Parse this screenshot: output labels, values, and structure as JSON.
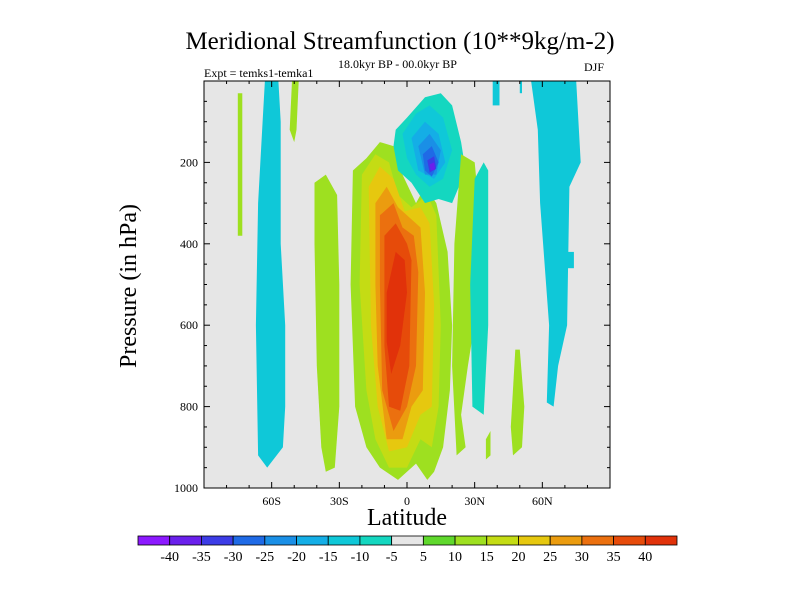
{
  "chart_data": {
    "type": "filled-contour",
    "title": "Meridional Streamfunction (10**9kg/m-2)",
    "experiment": "Expt = temks1-temka1",
    "period": "18.0kyr BP - 00.0kyr BP",
    "season": "DJF",
    "xlabel": "Latitude",
    "ylabel": "Pressure (in hPa)",
    "xlim": [
      -90,
      90
    ],
    "ylim": [
      1000,
      0
    ],
    "x_ticks": [
      {
        "value": -60,
        "label": "60S"
      },
      {
        "value": -30,
        "label": "30S"
      },
      {
        "value": 0,
        "label": "0"
      },
      {
        "value": 30,
        "label": "30N"
      },
      {
        "value": 60,
        "label": "60N"
      }
    ],
    "y_ticks": [
      {
        "value": 200,
        "label": "200"
      },
      {
        "value": 400,
        "label": "400"
      },
      {
        "value": 600,
        "label": "600"
      },
      {
        "value": 800,
        "label": "800"
      },
      {
        "value": 1000,
        "label": "1000"
      }
    ],
    "contour_levels": [
      -40,
      -35,
      -30,
      -25,
      -20,
      -15,
      -10,
      -5,
      5,
      10,
      15,
      20,
      25,
      30,
      35,
      40
    ],
    "colorbar_colors": [
      "#8c19ff",
      "#6a20ec",
      "#3c3ce6",
      "#1f6ae6",
      "#1a8fe6",
      "#14aee6",
      "#0fc8d8",
      "#14d7c0",
      "#e6e6e6",
      "#5fd82c",
      "#9ee020",
      "#c4dc14",
      "#e6c80f",
      "#eb9c0f",
      "#eb700f",
      "#e64b0a",
      "#e1320a"
    ],
    "regions": [
      {
        "level": 10,
        "polygon": [
          [
            -75,
            30
          ],
          [
            -73,
            30
          ],
          [
            -73,
            380
          ],
          [
            -75,
            380
          ]
        ]
      },
      {
        "level": -10,
        "polygon": [
          [
            -63,
            0
          ],
          [
            -57,
            0
          ],
          [
            -56,
            100
          ],
          [
            -56,
            400
          ],
          [
            -54,
            600
          ],
          [
            -54,
            800
          ],
          [
            -55,
            900
          ],
          [
            -62,
            950
          ],
          [
            -66,
            920
          ],
          [
            -67,
            600
          ],
          [
            -66,
            300
          ],
          [
            -64,
            100
          ]
        ]
      },
      {
        "level": 10,
        "polygon": [
          [
            -51,
            0
          ],
          [
            -48,
            0
          ],
          [
            -49,
            120
          ],
          [
            -50,
            150
          ],
          [
            -52,
            120
          ]
        ]
      },
      {
        "level": 10,
        "polygon": [
          [
            -41,
            250
          ],
          [
            -36,
            230
          ],
          [
            -31,
            280
          ],
          [
            -30,
            500
          ],
          [
            -30,
            800
          ],
          [
            -32,
            950
          ],
          [
            -36,
            960
          ],
          [
            -38,
            900
          ],
          [
            -40,
            700
          ],
          [
            -41,
            400
          ]
        ]
      },
      {
        "level": 10,
        "polygon": [
          [
            -24,
            220
          ],
          [
            -18,
            190
          ],
          [
            -12,
            150
          ],
          [
            -6,
            160
          ],
          [
            -2,
            230
          ],
          [
            4,
            300
          ],
          [
            8,
            260
          ],
          [
            13,
            300
          ],
          [
            18,
            420
          ],
          [
            20,
            600
          ],
          [
            19,
            760
          ],
          [
            16,
            900
          ],
          [
            12,
            960
          ],
          [
            9,
            980
          ],
          [
            4,
            940
          ],
          [
            -4,
            980
          ],
          [
            -12,
            950
          ],
          [
            -18,
            900
          ],
          [
            -23,
            800
          ],
          [
            -25,
            500
          ]
        ]
      },
      {
        "level": 15,
        "polygon": [
          [
            -20,
            230
          ],
          [
            -14,
            180
          ],
          [
            -8,
            200
          ],
          [
            -4,
            280
          ],
          [
            2,
            310
          ],
          [
            9,
            280
          ],
          [
            13,
            330
          ],
          [
            15,
            600
          ],
          [
            14,
            800
          ],
          [
            11,
            900
          ],
          [
            6,
            880
          ],
          [
            0,
            950
          ],
          [
            -8,
            950
          ],
          [
            -14,
            880
          ],
          [
            -18,
            760
          ],
          [
            -21,
            500
          ]
        ]
      },
      {
        "level": 20,
        "polygon": [
          [
            -17,
            260
          ],
          [
            -12,
            210
          ],
          [
            -6,
            240
          ],
          [
            -1,
            320
          ],
          [
            6,
            310
          ],
          [
            10,
            350
          ],
          [
            12,
            550
          ],
          [
            11,
            800
          ],
          [
            6,
            820
          ],
          [
            0,
            900
          ],
          [
            -8,
            910
          ],
          [
            -13,
            800
          ],
          [
            -16,
            600
          ]
        ]
      },
      {
        "level": 25,
        "polygon": [
          [
            -14,
            300
          ],
          [
            -9,
            260
          ],
          [
            -4,
            310
          ],
          [
            2,
            340
          ],
          [
            6,
            360
          ],
          [
            8,
            520
          ],
          [
            7,
            760
          ],
          [
            2,
            800
          ],
          [
            -2,
            880
          ],
          [
            -9,
            880
          ],
          [
            -13,
            700
          ],
          [
            -14,
            500
          ]
        ]
      },
      {
        "level": 30,
        "polygon": [
          [
            -12,
            330
          ],
          [
            -6,
            300
          ],
          [
            -2,
            360
          ],
          [
            3,
            380
          ],
          [
            5,
            470
          ],
          [
            4,
            700
          ],
          [
            0,
            800
          ],
          [
            -6,
            860
          ],
          [
            -11,
            760
          ],
          [
            -12,
            500
          ]
        ]
      },
      {
        "level": 35,
        "polygon": [
          [
            -10,
            380
          ],
          [
            -5,
            350
          ],
          [
            0,
            400
          ],
          [
            2,
            440
          ],
          [
            1,
            700
          ],
          [
            -3,
            810
          ],
          [
            -8,
            800
          ],
          [
            -10,
            650
          ]
        ]
      },
      {
        "level": 40,
        "polygon": [
          [
            -9,
            520
          ],
          [
            -5,
            420
          ],
          [
            -1,
            440
          ],
          [
            0,
            520
          ],
          [
            -3,
            650
          ],
          [
            -7,
            720
          ],
          [
            -9,
            640
          ]
        ]
      },
      {
        "level": -5,
        "polygon": [
          [
            -5,
            120
          ],
          [
            0,
            90
          ],
          [
            8,
            40
          ],
          [
            15,
            30
          ],
          [
            20,
            60
          ],
          [
            24,
            150
          ],
          [
            26,
            220
          ],
          [
            20,
            300
          ],
          [
            14,
            290
          ],
          [
            8,
            300
          ],
          [
            2,
            250
          ],
          [
            -4,
            220
          ],
          [
            -6,
            160
          ]
        ]
      },
      {
        "level": -10,
        "polygon": [
          [
            -2,
            130
          ],
          [
            4,
            80
          ],
          [
            10,
            60
          ],
          [
            16,
            90
          ],
          [
            20,
            170
          ],
          [
            16,
            240
          ],
          [
            10,
            260
          ],
          [
            4,
            230
          ],
          [
            0,
            190
          ]
        ]
      },
      {
        "level": -15,
        "polygon": [
          [
            2,
            140
          ],
          [
            8,
            100
          ],
          [
            14,
            130
          ],
          [
            17,
            200
          ],
          [
            12,
            240
          ],
          [
            5,
            220
          ]
        ]
      },
      {
        "level": -20,
        "polygon": [
          [
            5,
            160
          ],
          [
            10,
            130
          ],
          [
            15,
            170
          ],
          [
            13,
            230
          ],
          [
            8,
            230
          ]
        ]
      },
      {
        "level": -25,
        "polygon": [
          [
            7,
            180
          ],
          [
            11,
            160
          ],
          [
            14,
            200
          ],
          [
            11,
            235
          ],
          [
            8,
            220
          ]
        ]
      },
      {
        "level": -30,
        "polygon": [
          [
            9,
            195
          ],
          [
            12,
            185
          ],
          [
            13,
            215
          ],
          [
            10,
            225
          ]
        ]
      },
      {
        "level": -35,
        "polygon": [
          [
            10,
            205
          ],
          [
            12,
            200
          ],
          [
            12.5,
            218
          ],
          [
            10.5,
            220
          ]
        ]
      },
      {
        "level": 10,
        "polygon": [
          [
            24,
            180
          ],
          [
            30,
            200
          ],
          [
            32,
            320
          ],
          [
            31,
            560
          ],
          [
            27,
            700
          ],
          [
            24,
            820
          ],
          [
            26,
            900
          ],
          [
            22,
            920
          ],
          [
            20,
            700
          ],
          [
            21,
            400
          ]
        ]
      },
      {
        "level": -10,
        "polygon": [
          [
            38,
            0
          ],
          [
            41,
            0
          ],
          [
            41,
            60
          ],
          [
            38,
            60
          ]
        ]
      },
      {
        "level": -10,
        "polygon": [
          [
            50,
            0
          ],
          [
            51,
            0
          ],
          [
            51,
            30
          ],
          [
            50,
            30
          ]
        ]
      },
      {
        "level": -5,
        "polygon": [
          [
            30,
            240
          ],
          [
            34,
            200
          ],
          [
            36,
            220
          ],
          [
            36,
            600
          ],
          [
            34,
            820
          ],
          [
            29,
            800
          ],
          [
            28,
            500
          ]
        ]
      },
      {
        "level": -10,
        "polygon": [
          [
            55,
            0
          ],
          [
            75,
            0
          ],
          [
            77,
            200
          ],
          [
            72,
            260
          ],
          [
            71,
            600
          ],
          [
            67,
            700
          ],
          [
            65,
            800
          ],
          [
            62,
            790
          ],
          [
            63,
            600
          ],
          [
            61,
            450
          ],
          [
            59,
            300
          ],
          [
            58,
            120
          ]
        ]
      },
      {
        "level": -10,
        "polygon": [
          [
            71,
            420
          ],
          [
            74,
            420
          ],
          [
            74,
            460
          ],
          [
            71,
            460
          ]
        ]
      },
      {
        "level": 10,
        "polygon": [
          [
            48,
            660
          ],
          [
            50,
            660
          ],
          [
            52,
            800
          ],
          [
            51,
            900
          ],
          [
            47,
            920
          ],
          [
            46,
            850
          ]
        ]
      },
      {
        "level": 10,
        "polygon": [
          [
            35,
            880
          ],
          [
            37,
            860
          ],
          [
            37,
            920
          ],
          [
            35,
            930
          ]
        ]
      }
    ]
  }
}
